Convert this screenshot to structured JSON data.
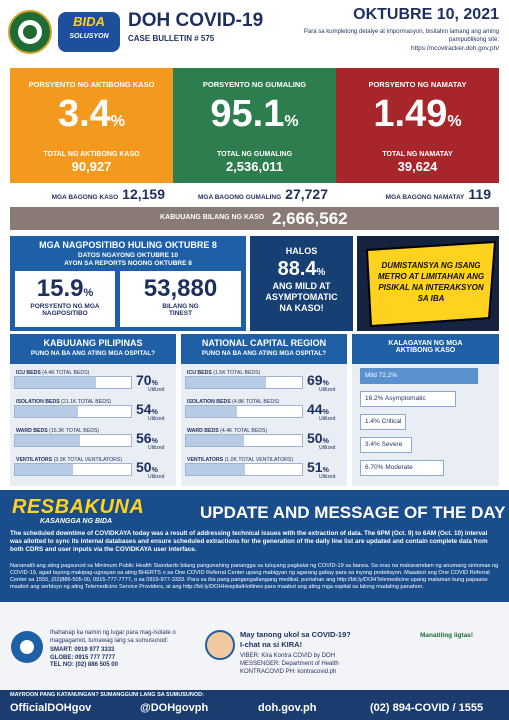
{
  "header": {
    "title": "DOH COVID-19",
    "bulletin": "CASE BULLETIN # 575",
    "date": "OKTUBRE 10, 2021",
    "note": "Para sa kumpletong detalye at impormasyon, bisitahin lamang ang aming pampublikong site:",
    "url": "https://ncovtracker.doh.gov.ph/",
    "logo_top": "BIDA",
    "logo_bottom": "SOLUSYON"
  },
  "summary": [
    {
      "label": "PORSYENTO NG AKTIBONG KASO",
      "percent": "3.4",
      "unit": "%",
      "total_label": "TOTAL NG AKTIBONG KASO",
      "total": "90,927",
      "new_label": "MGA BAGONG KASO",
      "new": "12,159"
    },
    {
      "label": "PORSYENTO NG GUMALING",
      "percent": "95.1",
      "unit": "%",
      "total_label": "TOTAL NG GUMALING",
      "total": "2,536,011",
      "new_label": "MGA BAGONG GUMALING",
      "new": "27,727"
    },
    {
      "label": "PORSYENTO NG NAMATAY",
      "percent": "1.49",
      "unit": "%",
      "total_label": "TOTAL NG NAMATAY",
      "total": "39,624",
      "new_label": "MGA BAGONG NAMATAY",
      "new": "119"
    }
  ],
  "total_cases": {
    "label": "KABUUANG BILANG NG KASO",
    "value": "2,666,562"
  },
  "positivity": {
    "title": "MGA NAGPOSITIBO HULING OKTUBRE 8",
    "subtitle_1": "DATOS NGAYONG OKTUBRE 10",
    "subtitle_2": "AYON SA REPORTS NOONG OKTUBRE 8",
    "rate": "15.9",
    "unit": "%",
    "rate_label": "PORSYENTO NG MGA NAGPOSITIBO",
    "tests": "53,880",
    "tests_label": "BILANG NG TINEST"
  },
  "mild": {
    "lead": "HALOS",
    "percent": "88.4",
    "unit": "%",
    "text": "ANG MILD AT ASYMPTOMATIC NA KASO!"
  },
  "reminder": {
    "text": "DUMISTANSYA NG ISANG METRO AT LIMITAHAN ANG PISIKAL NA INTERAKSYON SA IBA"
  },
  "hospital": {
    "unit": "%",
    "utilized": "Utilized",
    "xlim": [
      0,
      100
    ],
    "panels": [
      {
        "title": "KABUUANG PILIPINAS",
        "subtitle": "PUNO NA BA ANG ATING MGA OSPITAL?",
        "rows": [
          {
            "label": "ICU BEDS",
            "total": "(4.4K TOTAL BEDS)",
            "value": 70
          },
          {
            "label": "ISOLATION BEDS",
            "total": "(21.1K TOTAL BEDS)",
            "value": 54
          },
          {
            "label": "WARD BEDS",
            "total": "(15.3K TOTAL BEDS)",
            "value": 56
          },
          {
            "label": "VENTILATORS",
            "total": "(3.3K TOTAL VENTILATORS)",
            "value": 50
          }
        ]
      },
      {
        "title": "NATIONAL CAPITAL REGION",
        "subtitle": "PUNO NA BA ANG ATING MGA OSPITAL?",
        "rows": [
          {
            "label": "ICU BEDS",
            "total": "(1.5K TOTAL BEDS)",
            "value": 69
          },
          {
            "label": "ISOLATION BEDS",
            "total": "(4.8K TOTAL BEDS)",
            "value": 44
          },
          {
            "label": "WARD BEDS",
            "total": "(4.4K TOTAL BEDS)",
            "value": 50
          },
          {
            "label": "VENTILATORS",
            "total": "(1.0K TOTAL VENTILATORS)",
            "value": 51
          }
        ]
      }
    ]
  },
  "severity": {
    "title": "KALAGAYAN NG MGA AKTIBONG KASO",
    "items": [
      "Mild 72.2%",
      "16.2% Asymptomatic",
      "1.4% Critical",
      "3.4% Severe",
      "6.70% Moderate"
    ]
  },
  "update": {
    "brand": "RESBAKUNA",
    "tagline": "KASANGGA NG BIDA",
    "title": "UPDATE AND MESSAGE OF THE DAY",
    "message": "The scheduled downtime of COVIDKAYA today was a result of addressing technical issues with the extraction of data. The 6PM (Oct. 9) to 6AM (Oct. 10) interval was allotted to sync its internal databases and ensure scheduled extractions for the generation of the daily line list are updated and contain complete data from both CDRS and user inputs via the COVIDKAYA user interface.",
    "reminder": "Nananatili ang ating pagsunod sa Minimum Public Health Standards bilang pangunahing panangga sa tuluyang pagkalat ng COVID-19 sa bansa. Sa oras na makaramdam ng anumang sintomas ng COVID-19, agad tayong makipag-ugnayan sa ating BHERTS o sa One COVID Referral Center upang mabigyan ng agarang gabay para sa inyong proteksyon. Maaabot ang One COVID Referral Center sa 1555, (02)886-505-00, 0915-777-7777, o sa 0919-977-3333. Para sa iba pang pangangailangang medikal, puntahan ang http://bit.ly/DOHTelemedicine upang malaman kung papaano maabot ang serbisyo ng ating Telemedicine Service Providers, at ang http://bit.ly/DOHHospitalHotlines para maabot ang ating mga ospital sa lalong madaling panahon."
  },
  "contact": {
    "isolation_text": "Ihahanap ka namin ng lugar para mag-isolate o magpagamot, tumawag lang sa sumusunod:",
    "lines": [
      "SMART: 0919 977 3333",
      "GLOBE: 0915 777 7777",
      "TEL NO: (02) 886 505 00"
    ],
    "kira_question": "May tanong ukol sa COVID-19?",
    "kira_cta": "I-chat na si KIRA!",
    "kira_lines": [
      "VIBER: Kira Kontra COVID by DOH",
      "MESSENGER: Department of Health",
      "KONTRACOVID PH: kontracovid.ph"
    ],
    "stay_safe": "Manatiling ligtas!"
  },
  "footer": {
    "prompt": "MAYROON PANG KATANUNGAN? SUMANGGUNI LANG SA SUMUSUNOD:",
    "facebook": "OfficialDOHgov",
    "twitter": "@DOHgovph",
    "website": "doh.gov.ph",
    "hotline": "(02) 894-COVID / 1555"
  }
}
